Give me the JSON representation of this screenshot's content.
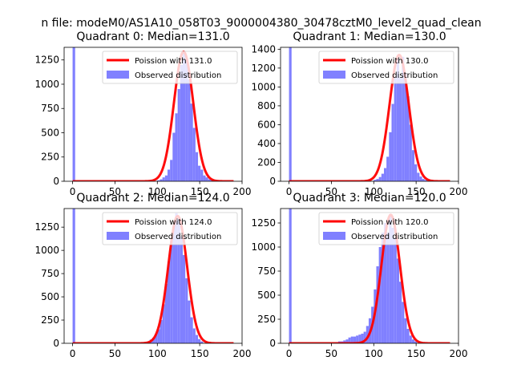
{
  "suptitle": "n file: modeM0/AS1A10_058T03_9000004380_30478cztM0_level2_quad_clean",
  "colors": {
    "hist": "#8080ff",
    "fit": "#ff0000",
    "axis": "#000000"
  },
  "chart_data": [
    {
      "type": "bar",
      "title": "Quadrant 0: Median=131.0",
      "median": 131.0,
      "xlim": [
        -10,
        200
      ],
      "ylim": [
        0,
        1380
      ],
      "xticks": [
        0,
        50,
        100,
        150,
        200
      ],
      "yticks": [
        0,
        250,
        500,
        750,
        1000,
        1250
      ],
      "xlabel": "",
      "ylabel": "",
      "legend": [
        "Poission with 131.0",
        "Observed distribution"
      ],
      "legend_loc": "upper right",
      "fit_label": "Poission with 131.0",
      "hist_label": "Observed distribution",
      "bin_width": 3,
      "hist_bins": [
        {
          "x": 0,
          "y": 1400
        },
        {
          "x": 100,
          "y": 10
        },
        {
          "x": 103,
          "y": 20
        },
        {
          "x": 106,
          "y": 40
        },
        {
          "x": 109,
          "y": 60
        },
        {
          "x": 112,
          "y": 120
        },
        {
          "x": 115,
          "y": 220
        },
        {
          "x": 118,
          "y": 500
        },
        {
          "x": 121,
          "y": 700
        },
        {
          "x": 124,
          "y": 950
        },
        {
          "x": 127,
          "y": 1200
        },
        {
          "x": 130,
          "y": 1340
        },
        {
          "x": 133,
          "y": 1260
        },
        {
          "x": 136,
          "y": 1050
        },
        {
          "x": 139,
          "y": 800
        },
        {
          "x": 142,
          "y": 550
        },
        {
          "x": 145,
          "y": 300
        },
        {
          "x": 148,
          "y": 160
        },
        {
          "x": 151,
          "y": 120
        },
        {
          "x": 154,
          "y": 60
        },
        {
          "x": 157,
          "y": 40
        },
        {
          "x": 160,
          "y": 20
        },
        {
          "x": 163,
          "y": 10
        }
      ],
      "fit_line": {
        "x_start": 0,
        "x_end": 190,
        "peak": 1335,
        "mu": 131.0,
        "sigma": 11.4
      }
    },
    {
      "type": "bar",
      "title": "Quadrant 1: Median=130.0",
      "median": 130.0,
      "xlim": [
        -10,
        200
      ],
      "ylim": [
        0,
        1420
      ],
      "xticks": [
        0,
        50,
        100,
        150,
        200
      ],
      "yticks": [
        0,
        200,
        400,
        600,
        800,
        1000,
        1200,
        1400
      ],
      "xlabel": "",
      "ylabel": "",
      "legend": [
        "Poission with 130.0",
        "Observed distribution"
      ],
      "legend_loc": "upper right",
      "fit_label": "Poission with 130.0",
      "hist_label": "Observed distribution",
      "bin_width": 3,
      "hist_bins": [
        {
          "x": 0,
          "y": 1450
        },
        {
          "x": 100,
          "y": 15
        },
        {
          "x": 103,
          "y": 25
        },
        {
          "x": 106,
          "y": 45
        },
        {
          "x": 109,
          "y": 80
        },
        {
          "x": 112,
          "y": 140
        },
        {
          "x": 115,
          "y": 260
        },
        {
          "x": 118,
          "y": 520
        },
        {
          "x": 121,
          "y": 820
        },
        {
          "x": 124,
          "y": 1100
        },
        {
          "x": 127,
          "y": 1300
        },
        {
          "x": 130,
          "y": 1100
        },
        {
          "x": 133,
          "y": 1320
        },
        {
          "x": 136,
          "y": 1150
        },
        {
          "x": 139,
          "y": 900
        },
        {
          "x": 142,
          "y": 600
        },
        {
          "x": 145,
          "y": 330
        },
        {
          "x": 148,
          "y": 180
        },
        {
          "x": 151,
          "y": 90
        },
        {
          "x": 154,
          "y": 50
        },
        {
          "x": 157,
          "y": 25
        },
        {
          "x": 160,
          "y": 12
        }
      ],
      "fit_line": {
        "x_start": 0,
        "x_end": 190,
        "peak": 1340,
        "mu": 130.0,
        "sigma": 11.4
      }
    },
    {
      "type": "bar",
      "title": "Quadrant 2: Median=124.0",
      "median": 124.0,
      "xlim": [
        -10,
        200
      ],
      "ylim": [
        0,
        1450
      ],
      "xticks": [
        0,
        50,
        100,
        150,
        200
      ],
      "yticks": [
        0,
        250,
        500,
        750,
        1000,
        1250
      ],
      "xlabel": "",
      "ylabel": "",
      "legend": [
        "Poission with 124.0",
        "Observed distribution"
      ],
      "legend_loc": "upper right",
      "fit_label": "Poission with 124.0",
      "hist_label": "Observed distribution",
      "bin_width": 3,
      "hist_bins": [
        {
          "x": 0,
          "y": 1450
        },
        {
          "x": 85,
          "y": 10
        },
        {
          "x": 88,
          "y": 20
        },
        {
          "x": 91,
          "y": 40
        },
        {
          "x": 94,
          "y": 60
        },
        {
          "x": 97,
          "y": 100
        },
        {
          "x": 100,
          "y": 150
        },
        {
          "x": 103,
          "y": 250
        },
        {
          "x": 106,
          "y": 420
        },
        {
          "x": 109,
          "y": 640
        },
        {
          "x": 112,
          "y": 880
        },
        {
          "x": 115,
          "y": 1100
        },
        {
          "x": 118,
          "y": 1260
        },
        {
          "x": 121,
          "y": 1400
        },
        {
          "x": 124,
          "y": 1340
        },
        {
          "x": 127,
          "y": 1150
        },
        {
          "x": 130,
          "y": 950
        },
        {
          "x": 133,
          "y": 700
        },
        {
          "x": 136,
          "y": 460
        },
        {
          "x": 139,
          "y": 280
        },
        {
          "x": 142,
          "y": 160
        },
        {
          "x": 145,
          "y": 90
        },
        {
          "x": 148,
          "y": 45
        },
        {
          "x": 151,
          "y": 20
        }
      ],
      "fit_line": {
        "x_start": 0,
        "x_end": 190,
        "peak": 1370,
        "mu": 124.0,
        "sigma": 11.1
      }
    },
    {
      "type": "bar",
      "title": "Quadrant 3: Median=120.0",
      "median": 120.0,
      "xlim": [
        -10,
        200
      ],
      "ylim": [
        0,
        1400
      ],
      "xticks": [
        0,
        50,
        100,
        150,
        200
      ],
      "yticks": [
        0,
        250,
        500,
        750,
        1000,
        1250
      ],
      "xlabel": "",
      "ylabel": "",
      "legend": [
        "Poission with 120.0",
        "Observed distribution"
      ],
      "legend_loc": "upper right",
      "fit_label": "Poission with 120.0",
      "hist_label": "Observed distribution",
      "bin_width": 3,
      "hist_bins": [
        {
          "x": 0,
          "y": 1400
        },
        {
          "x": 55,
          "y": 10
        },
        {
          "x": 58,
          "y": 20
        },
        {
          "x": 61,
          "y": 20
        },
        {
          "x": 64,
          "y": 30
        },
        {
          "x": 67,
          "y": 40
        },
        {
          "x": 70,
          "y": 60
        },
        {
          "x": 73,
          "y": 70
        },
        {
          "x": 76,
          "y": 70
        },
        {
          "x": 79,
          "y": 80
        },
        {
          "x": 82,
          "y": 90
        },
        {
          "x": 85,
          "y": 100
        },
        {
          "x": 88,
          "y": 120
        },
        {
          "x": 91,
          "y": 180
        },
        {
          "x": 94,
          "y": 260
        },
        {
          "x": 97,
          "y": 380
        },
        {
          "x": 100,
          "y": 560
        },
        {
          "x": 103,
          "y": 800
        },
        {
          "x": 106,
          "y": 1000
        },
        {
          "x": 109,
          "y": 1150
        },
        {
          "x": 112,
          "y": 1250
        },
        {
          "x": 115,
          "y": 1150
        },
        {
          "x": 118,
          "y": 1340
        },
        {
          "x": 121,
          "y": 1200
        },
        {
          "x": 124,
          "y": 1100
        },
        {
          "x": 127,
          "y": 880
        },
        {
          "x": 130,
          "y": 640
        },
        {
          "x": 133,
          "y": 430
        },
        {
          "x": 136,
          "y": 260
        },
        {
          "x": 139,
          "y": 150
        },
        {
          "x": 142,
          "y": 80
        },
        {
          "x": 145,
          "y": 40
        },
        {
          "x": 148,
          "y": 20
        }
      ],
      "fit_line": {
        "x_start": 0,
        "x_end": 190,
        "peak": 1335,
        "mu": 120.0,
        "sigma": 11.0
      }
    }
  ]
}
